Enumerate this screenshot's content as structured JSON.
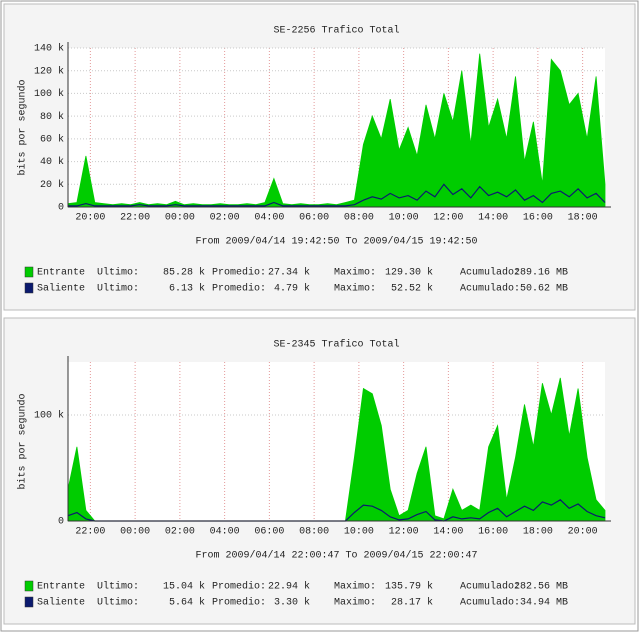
{
  "chart_data": [
    {
      "type": "area",
      "title": "SE-2256 Trafico Total",
      "subtitle": "From 2009/04/14 19:42:50 To 2009/04/15 19:42:50",
      "y_label": "bits por segundo",
      "x": [
        19,
        19.4,
        19.8,
        20.2,
        20.6,
        21,
        21.4,
        21.8,
        22.2,
        22.6,
        23,
        23.4,
        23.8,
        24.2,
        24.6,
        25,
        25.4,
        25.8,
        26.2,
        26.6,
        27,
        27.4,
        27.8,
        28.2,
        28.6,
        29,
        29.4,
        29.8,
        30.2,
        30.6,
        31,
        31.4,
        31.8,
        32.2,
        32.6,
        33,
        33.4,
        33.8,
        34.2,
        34.6,
        35,
        35.4,
        35.8,
        36.2,
        36.6,
        37,
        37.4,
        37.8,
        38.2,
        38.6,
        39,
        39.4,
        39.8,
        40.2,
        40.6,
        41,
        41.4,
        41.8,
        42.2,
        42.6,
        43
      ],
      "xlim": [
        19,
        43
      ],
      "xticks": [
        {
          "value": 20,
          "label": "20:00"
        },
        {
          "value": 22,
          "label": "22:00"
        },
        {
          "value": 24,
          "label": "00:00"
        },
        {
          "value": 26,
          "label": "02:00"
        },
        {
          "value": 28,
          "label": "04:00"
        },
        {
          "value": 30,
          "label": "06:00"
        },
        {
          "value": 32,
          "label": "08:00"
        },
        {
          "value": 34,
          "label": "10:00"
        },
        {
          "value": 36,
          "label": "12:00"
        },
        {
          "value": 38,
          "label": "14:00"
        },
        {
          "value": 40,
          "label": "16:00"
        },
        {
          "value": 42,
          "label": "18:00"
        }
      ],
      "ylim": [
        0,
        140000
      ],
      "yticks": [
        0,
        {
          "value": 20000,
          "label": "20 k"
        },
        {
          "value": 40000,
          "label": "40 k"
        },
        {
          "value": 60000,
          "label": "60 k"
        },
        {
          "value": 80000,
          "label": "80 k"
        },
        {
          "value": 100000,
          "label": "100 k"
        },
        {
          "value": 120000,
          "label": "120 k"
        },
        {
          "value": 140000,
          "label": "140 k"
        }
      ],
      "grid": true,
      "series": [
        {
          "name": "Entrante",
          "color": "#00cc00",
          "mark": "area",
          "values": [
            3000,
            4000,
            45000,
            4000,
            3000,
            2000,
            3000,
            2000,
            4000,
            2000,
            3000,
            2000,
            5000,
            2000,
            3000,
            2000,
            2000,
            3000,
            2000,
            2000,
            3000,
            2000,
            4000,
            25000,
            3000,
            2000,
            3000,
            2000,
            2000,
            3000,
            2000,
            4000,
            6000,
            55000,
            80000,
            60000,
            95000,
            50000,
            70000,
            45000,
            90000,
            60000,
            100000,
            75000,
            120000,
            55000,
            135000,
            70000,
            95000,
            60000,
            115000,
            40000,
            75000,
            20000,
            130000,
            120000,
            90000,
            100000,
            60000,
            115000,
            20000
          ],
          "stats": [
            {
              "label": "Ultimo:",
              "value": "85.28 k"
            },
            {
              "label": "Promedio:",
              "value": "27.34 k"
            },
            {
              "label": "Maximo:",
              "value": "129.30 k"
            },
            {
              "label": "Acumulado:",
              "value": "289.16 MB"
            }
          ]
        },
        {
          "name": "Saliente",
          "color": "#0b1a6e",
          "mark": "line",
          "values": [
            1000,
            1000,
            3000,
            1000,
            1000,
            1000,
            1000,
            1000,
            2000,
            1000,
            1000,
            1000,
            2000,
            1000,
            1000,
            1000,
            1000,
            1000,
            1000,
            1000,
            1000,
            1000,
            1000,
            4000,
            1000,
            1000,
            1000,
            1000,
            1000,
            1000,
            1000,
            1000,
            2000,
            6000,
            9000,
            7000,
            12000,
            8000,
            10000,
            6000,
            14000,
            9000,
            20000,
            11000,
            16000,
            8000,
            18000,
            10000,
            13000,
            9000,
            15000,
            6000,
            10000,
            4000,
            12000,
            14000,
            9000,
            16000,
            8000,
            12000,
            4000
          ],
          "stats": [
            {
              "label": "Ultimo:",
              "value": "6.13 k"
            },
            {
              "label": "Promedio:",
              "value": "4.79 k"
            },
            {
              "label": "Maximo:",
              "value": "52.52 k"
            },
            {
              "label": "Acumulado:",
              "value": "50.62 MB"
            }
          ]
        }
      ]
    },
    {
      "type": "area",
      "title": "SE-2345 Trafico Total",
      "subtitle": "From 2009/04/14 22:00:47 To 2009/04/15 22:00:47",
      "y_label": "bits por segundo",
      "x": [
        21,
        21.4,
        21.8,
        22.2,
        22.6,
        23,
        23.4,
        23.8,
        24.2,
        24.6,
        25,
        25.4,
        25.8,
        26.2,
        26.6,
        27,
        27.4,
        27.8,
        28.2,
        28.6,
        29,
        29.4,
        29.8,
        30.2,
        30.6,
        31,
        31.4,
        31.8,
        32.2,
        32.6,
        33,
        33.4,
        33.8,
        34.2,
        34.6,
        35,
        35.4,
        35.8,
        36.2,
        36.6,
        37,
        37.4,
        37.8,
        38.2,
        38.6,
        39,
        39.4,
        39.8,
        40.2,
        40.6,
        41,
        41.4,
        41.8,
        42.2,
        42.6,
        43,
        43.4,
        43.8,
        44.2,
        44.6,
        45
      ],
      "xlim": [
        21,
        45
      ],
      "xticks": [
        {
          "value": 22,
          "label": "22:00"
        },
        {
          "value": 24,
          "label": "00:00"
        },
        {
          "value": 26,
          "label": "02:00"
        },
        {
          "value": 28,
          "label": "04:00"
        },
        {
          "value": 30,
          "label": "06:00"
        },
        {
          "value": 32,
          "label": "08:00"
        },
        {
          "value": 34,
          "label": "10:00"
        },
        {
          "value": 36,
          "label": "12:00"
        },
        {
          "value": 38,
          "label": "14:00"
        },
        {
          "value": 40,
          "label": "16:00"
        },
        {
          "value": 42,
          "label": "18:00"
        },
        {
          "value": 44,
          "label": "20:00"
        }
      ],
      "ylim": [
        0,
        150000
      ],
      "yticks": [
        0,
        {
          "value": 100000,
          "label": "100 k"
        }
      ],
      "grid": true,
      "series": [
        {
          "name": "Entrante",
          "color": "#00cc00",
          "mark": "area",
          "values": [
            30000,
            70000,
            10000,
            0,
            0,
            0,
            0,
            0,
            0,
            0,
            0,
            0,
            0,
            0,
            0,
            0,
            0,
            0,
            0,
            0,
            0,
            0,
            0,
            0,
            0,
            0,
            0,
            0,
            0,
            0,
            0,
            0,
            60000,
            125000,
            120000,
            90000,
            30000,
            5000,
            10000,
            45000,
            70000,
            5000,
            2000,
            30000,
            10000,
            15000,
            10000,
            70000,
            90000,
            20000,
            60000,
            110000,
            70000,
            130000,
            100000,
            135000,
            80000,
            125000,
            60000,
            20000,
            10000
          ],
          "stats": [
            {
              "label": "Ultimo:",
              "value": "15.04 k"
            },
            {
              "label": "Promedio:",
              "value": "22.94 k"
            },
            {
              "label": "Maximo:",
              "value": "135.79 k"
            },
            {
              "label": "Acumulado:",
              "value": "282.56 MB"
            }
          ]
        },
        {
          "name": "Saliente",
          "color": "#0b1a6e",
          "mark": "line",
          "values": [
            5000,
            8000,
            2000,
            0,
            0,
            0,
            0,
            0,
            0,
            0,
            0,
            0,
            0,
            0,
            0,
            0,
            0,
            0,
            0,
            0,
            0,
            0,
            0,
            0,
            0,
            0,
            0,
            0,
            0,
            0,
            0,
            0,
            8000,
            15000,
            14000,
            10000,
            4000,
            1000,
            2000,
            6000,
            9000,
            1000,
            0,
            4000,
            2000,
            3000,
            2000,
            8000,
            12000,
            4000,
            9000,
            14000,
            10000,
            18000,
            15000,
            20000,
            12000,
            16000,
            9000,
            5000,
            3000
          ],
          "stats": [
            {
              "label": "Ultimo:",
              "value": "5.64 k"
            },
            {
              "label": "Promedio:",
              "value": "3.30 k"
            },
            {
              "label": "Maximo:",
              "value": "28.17 k"
            },
            {
              "label": "Acumulado:",
              "value": "34.94 MB"
            }
          ]
        }
      ]
    }
  ]
}
